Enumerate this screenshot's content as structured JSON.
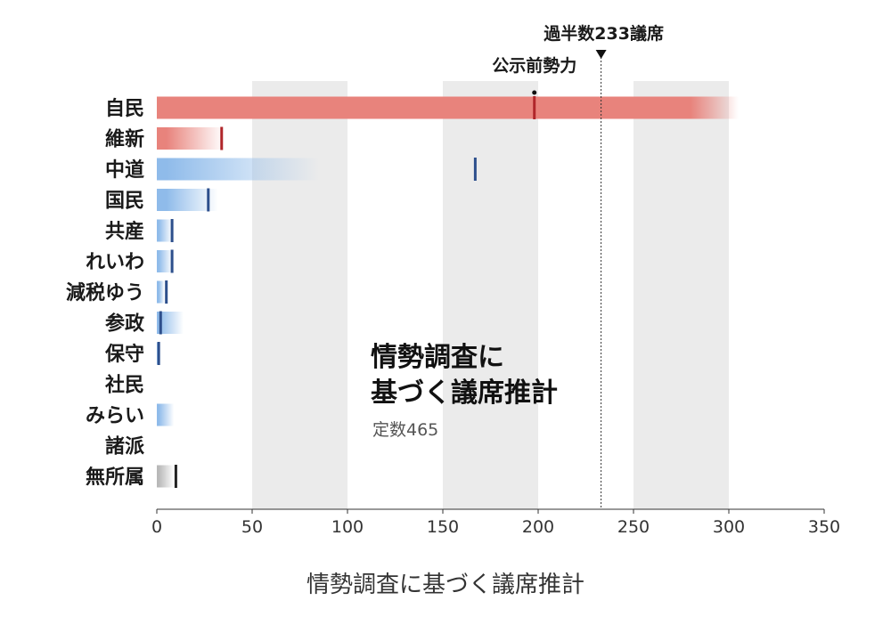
{
  "caption": "情勢調査に基づく議席推計",
  "chart_data": {
    "type": "bar",
    "title_lines": [
      "情勢調査に",
      "基づく議席推計"
    ],
    "subtitle": "定数465",
    "categories": [
      "自民",
      "維新",
      "中道",
      "国民",
      "共産",
      "れいわ",
      "減税ゆう",
      "参政",
      "保守",
      "社民",
      "みらい",
      "諸派",
      "無所属"
    ],
    "estimate_ranges": [
      [
        280,
        305
      ],
      [
        5,
        35
      ],
      [
        5,
        85
      ],
      [
        5,
        32
      ],
      [
        1,
        8
      ],
      [
        1,
        8
      ],
      [
        1,
        4
      ],
      [
        1,
        14
      ],
      [
        0,
        2
      ],
      null,
      [
        1,
        9
      ],
      null,
      [
        1,
        9
      ]
    ],
    "pre_election_strength": [
      198,
      34,
      167,
      27,
      8,
      8,
      5,
      2,
      1,
      null,
      null,
      null,
      10
    ],
    "bar_colors": [
      "#e8837c",
      "#e8837c",
      "#8fbbea",
      "#8fbbea",
      "#8fbbea",
      "#8fbbea",
      "#8fbbea",
      "#8fbbea",
      "#8fbbea",
      null,
      "#8fbbea",
      null,
      "#b8b8b8"
    ],
    "marker_colors": [
      "#b0262a",
      "#b0262a",
      "#2d4f8c",
      "#2d4f8c",
      "#2d4f8c",
      "#2d4f8c",
      "#2d4f8c",
      "#2d4f8c",
      "#2d4f8c",
      null,
      null,
      null,
      "#222222"
    ],
    "xlim": [
      0,
      350
    ],
    "xticks": [
      0,
      50,
      100,
      150,
      200,
      250,
      300,
      350
    ],
    "shaded_bands": [
      [
        50,
        100
      ],
      [
        150,
        200
      ],
      [
        250,
        300
      ]
    ],
    "annotations": {
      "majority_label": "過半数233議席",
      "majority_value": 233,
      "pre_strength_label": "公示前勢力",
      "pre_strength_value": 198
    },
    "grid": false,
    "legend": "none"
  }
}
